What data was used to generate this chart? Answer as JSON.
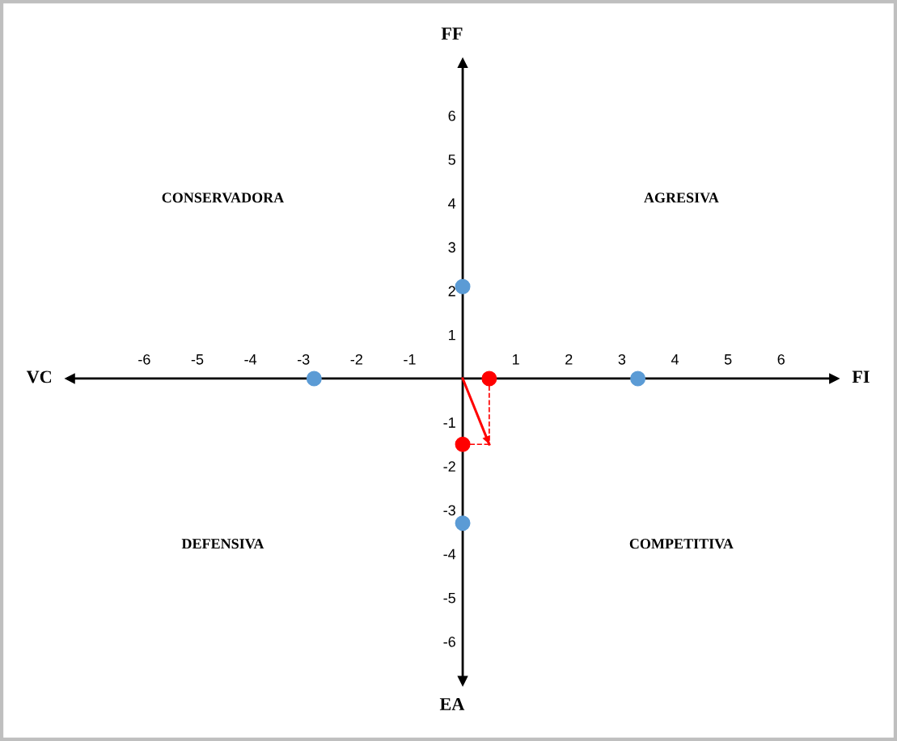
{
  "chart_data": {
    "type": "scatter",
    "xlim": [
      -7.4,
      7.0
    ],
    "ylim": [
      -6.9,
      7.2
    ],
    "xticks": [
      -6,
      -5,
      -4,
      -3,
      -2,
      -1,
      1,
      2,
      3,
      4,
      5,
      6
    ],
    "yticks": [
      -6,
      -5,
      -4,
      -3,
      -2,
      -1,
      1,
      2,
      3,
      4,
      5,
      6
    ],
    "grid": false,
    "legend": false,
    "series": [
      {
        "marker": "circle",
        "color": "#5b9bd5",
        "x": [
          -2.8,
          3.3,
          0,
          0
        ],
        "values": [
          0,
          0,
          2.1,
          -3.3
        ]
      },
      {
        "marker": "circle",
        "color": "#ff0000",
        "x": [
          0.5,
          0
        ],
        "values": [
          0,
          -1.5
        ]
      },
      {
        "type": "line",
        "color": "#ff0000",
        "line_style": "solid",
        "x": [
          0,
          0.5
        ],
        "values": [
          0,
          -1.5
        ]
      },
      {
        "type": "line",
        "color": "#ff0000",
        "line_style": "dashed",
        "x": [
          0.5,
          0.5
        ],
        "values": [
          0,
          -1.5
        ]
      },
      {
        "type": "line",
        "color": "#ff0000",
        "line_style": "dashed",
        "x": [
          0,
          0.5
        ],
        "values": [
          -1.5,
          -1.5
        ]
      }
    ],
    "annotations": [
      "FF",
      "EA",
      "VC",
      "FI",
      "CONSERVADORA",
      "AGRESIVA",
      "DEFENSIVA",
      "COMPETITIVA"
    ]
  }
}
